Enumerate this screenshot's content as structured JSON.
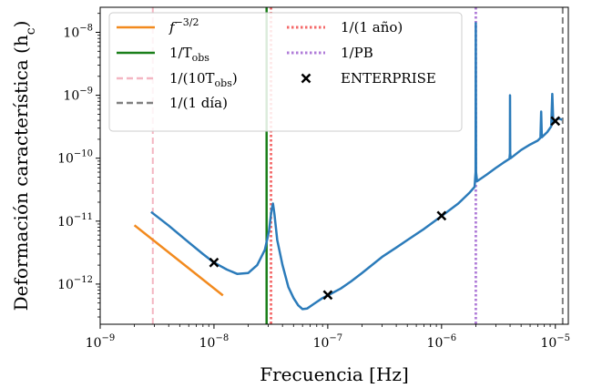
{
  "chart_data": {
    "type": "line",
    "xscale": "log",
    "yscale": "log",
    "xlabel": "Frecuencia [Hz]",
    "ylabel": "Deformación característica (h",
    "ylabel_sub": "c",
    "ylabel_close": ")",
    "xlim": [
      1e-09,
      1.3e-05
    ],
    "ylim": [
      2.3e-13,
      2.5e-08
    ],
    "grid": false,
    "legend_position": "top",
    "x_ticks": [
      {
        "value": 1e-09,
        "base": "10",
        "exp": "−9"
      },
      {
        "value": 1e-08,
        "base": "10",
        "exp": "−8"
      },
      {
        "value": 1e-07,
        "base": "10",
        "exp": "−7"
      },
      {
        "value": 1e-06,
        "base": "10",
        "exp": "−6"
      },
      {
        "value": 1e-05,
        "base": "10",
        "exp": "−5"
      }
    ],
    "y_ticks": [
      {
        "value": 1e-12,
        "base": "10",
        "exp": "−12"
      },
      {
        "value": 1e-11,
        "base": "10",
        "exp": "−11"
      },
      {
        "value": 1e-10,
        "base": "10",
        "exp": "−10"
      },
      {
        "value": 1e-09,
        "base": "10",
        "exp": "−9"
      },
      {
        "value": 1e-08,
        "base": "10",
        "exp": "−8"
      }
    ],
    "sensitivity_curve": {
      "color": "#2b7bba",
      "points": [
        [
          2.8e-09,
          1.4e-11
        ],
        [
          4e-09,
          8.5e-12
        ],
        [
          6e-09,
          4.6e-12
        ],
        [
          8e-09,
          3e-12
        ],
        [
          1e-08,
          2.2e-12
        ],
        [
          1.3e-08,
          1.7e-12
        ],
        [
          1.6e-08,
          1.45e-12
        ],
        [
          2e-08,
          1.5e-12
        ],
        [
          2.4e-08,
          2e-12
        ],
        [
          2.8e-08,
          3.5e-12
        ],
        [
          3.05e-08,
          7e-12
        ],
        [
          3.2e-08,
          1.5e-11
        ],
        [
          3.3e-08,
          1.9e-11
        ],
        [
          3.4e-08,
          1.3e-11
        ],
        [
          3.6e-08,
          5e-12
        ],
        [
          4e-08,
          2e-12
        ],
        [
          4.5e-08,
          9e-13
        ],
        [
          5e-08,
          6e-13
        ],
        [
          5.5e-08,
          4.6e-13
        ],
        [
          6e-08,
          4e-13
        ],
        [
          6.6e-08,
          4.1e-13
        ],
        [
          7.5e-08,
          4.8e-13
        ],
        [
          9e-08,
          6e-13
        ],
        [
          1e-07,
          6.6e-13
        ],
        [
          1.3e-07,
          8.5e-13
        ],
        [
          1.6e-07,
          1.1e-12
        ],
        [
          2e-07,
          1.5e-12
        ],
        [
          3e-07,
          2.7e-12
        ],
        [
          4e-07,
          3.8e-12
        ],
        [
          5e-07,
          5e-12
        ],
        [
          7e-07,
          7.5e-12
        ],
        [
          1e-06,
          1.2e-11
        ],
        [
          1.4e-06,
          1.9e-11
        ],
        [
          1.75e-06,
          2.8e-11
        ],
        [
          1.95e-06,
          3.5e-11
        ],
        [
          1.99e-06,
          6e-11
        ],
        [
          2e-06,
          1.4e-08
        ],
        [
          2.01e-06,
          6e-11
        ],
        [
          2.05e-06,
          4.3e-11
        ],
        [
          2.5e-06,
          5.5e-11
        ],
        [
          3e-06,
          7e-11
        ],
        [
          3.5e-06,
          8.5e-11
        ],
        [
          3.95e-06,
          9.8e-11
        ],
        [
          3.99e-06,
          1.2e-10
        ],
        [
          4e-06,
          1e-09
        ],
        [
          4.01e-06,
          1.2e-10
        ],
        [
          4.05e-06,
          1e-10
        ],
        [
          5e-06,
          1.35e-10
        ],
        [
          6e-06,
          1.65e-10
        ],
        [
          7e-06,
          1.9e-10
        ],
        [
          7.4e-06,
          2.1e-10
        ],
        [
          7.5e-06,
          5.5e-10
        ],
        [
          7.6e-06,
          2.15e-10
        ],
        [
          8.5e-06,
          2.6e-10
        ],
        [
          9.2e-06,
          3.2e-10
        ],
        [
          9.4e-06,
          1.05e-09
        ],
        [
          9.6e-06,
          3.6e-10
        ],
        [
          1.05e-05,
          4.3e-10
        ],
        [
          1.15e-05,
          4.1e-10
        ]
      ]
    },
    "powerlaw_line": {
      "color": "#f28a1e",
      "points": [
        [
          2e-09,
          8.6e-12
        ],
        [
          1.2e-08,
          6.6e-13
        ]
      ]
    },
    "vertical_lines": [
      {
        "x": 2.9e-08,
        "color": "#1a7f1a",
        "style": "solid",
        "width": 2.5
      },
      {
        "x": 2.9e-09,
        "color": "#f4b6c2",
        "style": "dashed",
        "width": 2
      },
      {
        "x": 1.16e-05,
        "color": "#808080",
        "style": "dashed",
        "width": 2
      },
      {
        "x": 3.17e-08,
        "color": "#f46a6a",
        "style": "dotted",
        "width": 2.8
      },
      {
        "x": 2e-06,
        "color": "#b07cd8",
        "style": "dotted",
        "width": 2.8
      }
    ],
    "enterprise_points": [
      {
        "x": 1e-08,
        "y": 2.2e-12
      },
      {
        "x": 1e-07,
        "y": 6.7e-13
      },
      {
        "x": 1e-06,
        "y": 1.22e-11
      },
      {
        "x": 1e-05,
        "y": 3.9e-10
      }
    ],
    "legend": [
      {
        "kind": "line",
        "color": "#f28a1e",
        "style": "solid",
        "label": "f",
        "sup": "−3/2"
      },
      {
        "kind": "line",
        "color": "#1a7f1a",
        "style": "solid",
        "label": "1/T",
        "sub": "obs"
      },
      {
        "kind": "line",
        "color": "#f4b6c2",
        "style": "dashed",
        "label": "1/(10T",
        "sub": "obs",
        "tail": ")"
      },
      {
        "kind": "line",
        "color": "#808080",
        "style": "dashed",
        "label": "1/(1 día)"
      },
      {
        "kind": "line",
        "color": "#f46a6a",
        "style": "dotted",
        "label": "1/(1 año)"
      },
      {
        "kind": "line",
        "color": "#b07cd8",
        "style": "dotted",
        "label": "1/PB"
      },
      {
        "kind": "marker",
        "color": "#000000",
        "label": "ENTERPRISE"
      }
    ]
  }
}
